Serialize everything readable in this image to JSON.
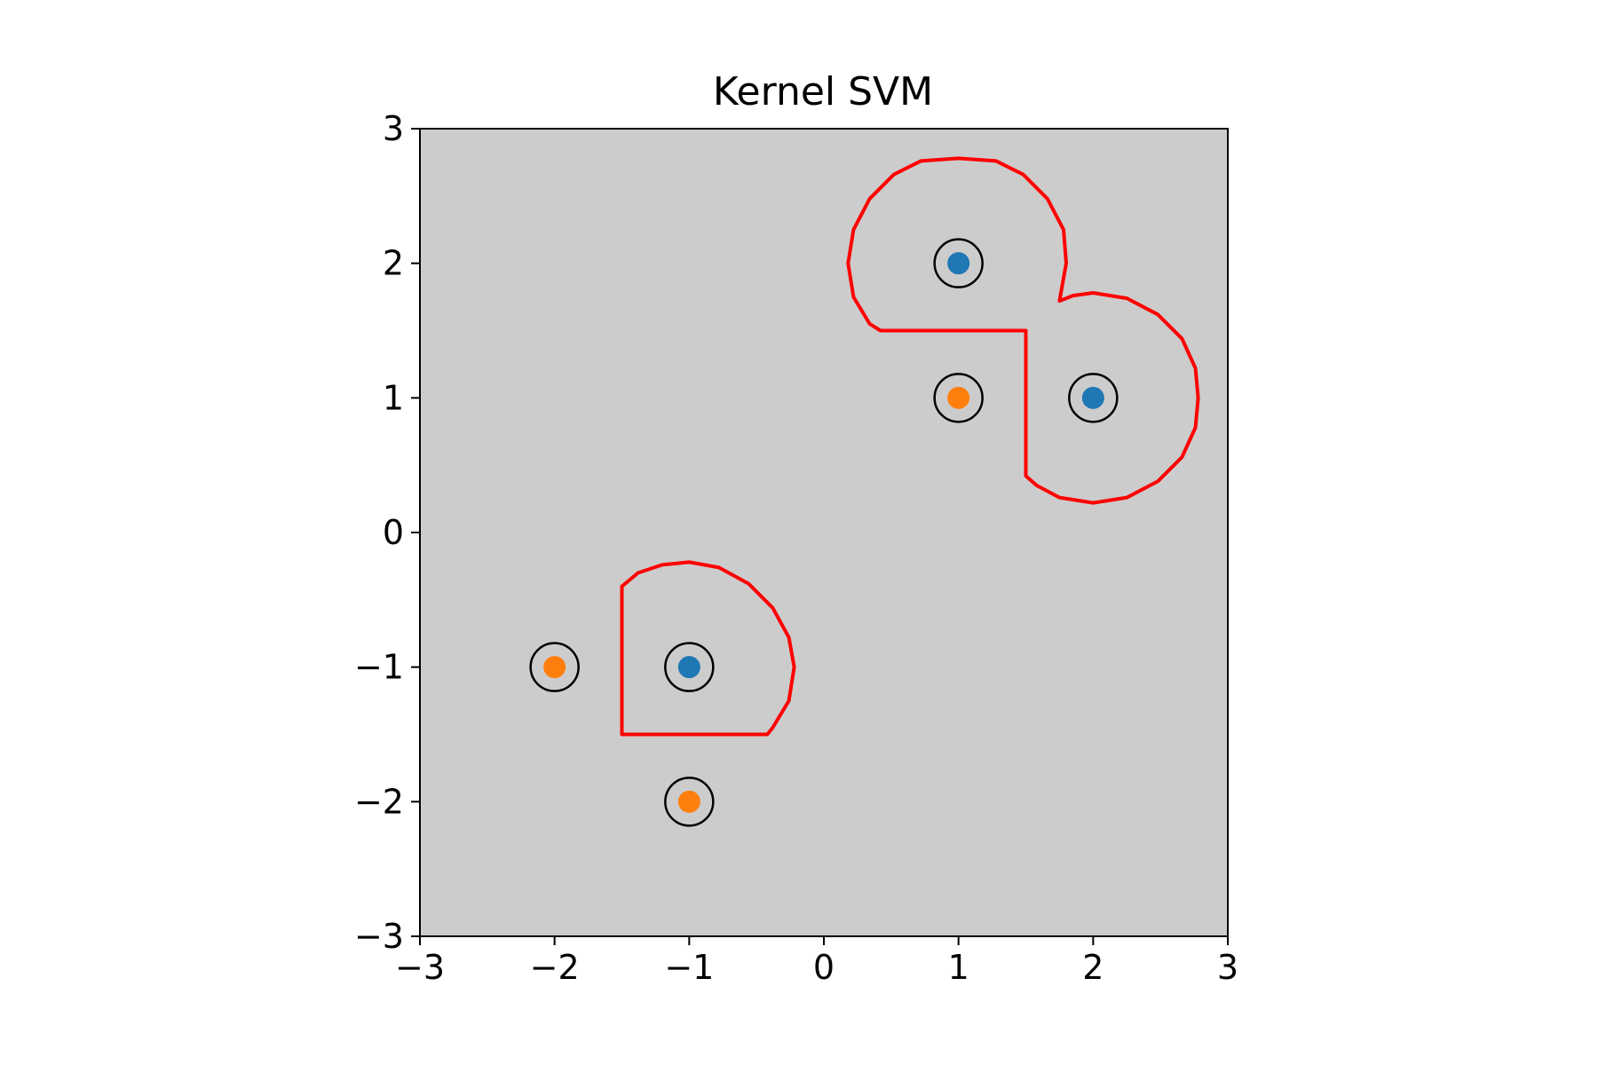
{
  "chart_data": {
    "type": "scatter",
    "title": "Kernel SVM",
    "xlabel": "",
    "ylabel": "",
    "xlim": [
      -3,
      3
    ],
    "ylim": [
      -3,
      3
    ],
    "grid": false,
    "background_color": "#cccccc",
    "x_ticks": [
      {
        "value": -3,
        "label": "−3"
      },
      {
        "value": -2,
        "label": "−2"
      },
      {
        "value": -1,
        "label": "−1"
      },
      {
        "value": 0,
        "label": "0"
      },
      {
        "value": 1,
        "label": "1"
      },
      {
        "value": 2,
        "label": "2"
      },
      {
        "value": 3,
        "label": "3"
      }
    ],
    "y_ticks": [
      {
        "value": -3,
        "label": "−3"
      },
      {
        "value": -2,
        "label": "−2"
      },
      {
        "value": -1,
        "label": "−1"
      },
      {
        "value": 0,
        "label": "0"
      },
      {
        "value": 1,
        "label": "1"
      },
      {
        "value": 2,
        "label": "2"
      },
      {
        "value": 3,
        "label": "3"
      }
    ],
    "series": [
      {
        "color": "#1f77b4",
        "points": [
          {
            "x": 1,
            "y": 2
          },
          {
            "x": 2,
            "y": 1
          },
          {
            "x": -1,
            "y": -1
          }
        ]
      },
      {
        "color": "#ff7f0e",
        "points": [
          {
            "x": 1,
            "y": 1
          },
          {
            "x": -2,
            "y": -1
          },
          {
            "x": -1,
            "y": -2
          }
        ]
      }
    ],
    "support_vectors": {
      "edge_color": "#000000",
      "points": [
        {
          "x": 1,
          "y": 2
        },
        {
          "x": 2,
          "y": 1
        },
        {
          "x": -1,
          "y": -1
        },
        {
          "x": 1,
          "y": 1
        },
        {
          "x": -2,
          "y": -1
        },
        {
          "x": -1,
          "y": -2
        }
      ]
    },
    "decision_boundary": {
      "color": "#ff0000",
      "contours": [
        [
          [
            0.18,
            2.0
          ],
          [
            0.22,
            2.25
          ],
          [
            0.34,
            2.48
          ],
          [
            0.52,
            2.66
          ],
          [
            0.72,
            2.76
          ],
          [
            1.0,
            2.78
          ],
          [
            1.28,
            2.76
          ],
          [
            1.48,
            2.66
          ],
          [
            1.66,
            2.48
          ],
          [
            1.78,
            2.25
          ],
          [
            1.8,
            2.0
          ],
          [
            1.75,
            1.72
          ],
          [
            1.85,
            1.76
          ],
          [
            2.0,
            1.78
          ],
          [
            2.25,
            1.74
          ],
          [
            2.48,
            1.62
          ],
          [
            2.66,
            1.44
          ],
          [
            2.76,
            1.22
          ],
          [
            2.78,
            1.0
          ],
          [
            2.76,
            0.78
          ],
          [
            2.66,
            0.56
          ],
          [
            2.48,
            0.38
          ],
          [
            2.25,
            0.26
          ],
          [
            2.0,
            0.22
          ],
          [
            1.75,
            0.26
          ],
          [
            1.58,
            0.35
          ],
          [
            1.5,
            0.42
          ],
          [
            1.5,
            1.5
          ],
          [
            0.42,
            1.5
          ],
          [
            0.34,
            1.55
          ],
          [
            0.22,
            1.75
          ],
          [
            0.18,
            2.0
          ]
        ],
        [
          [
            -1.5,
            -0.4
          ],
          [
            -1.38,
            -0.3
          ],
          [
            -1.2,
            -0.24
          ],
          [
            -1.0,
            -0.22
          ],
          [
            -0.78,
            -0.26
          ],
          [
            -0.56,
            -0.38
          ],
          [
            -0.38,
            -0.56
          ],
          [
            -0.26,
            -0.78
          ],
          [
            -0.22,
            -1.0
          ],
          [
            -0.26,
            -1.25
          ],
          [
            -0.38,
            -1.45
          ],
          [
            -0.42,
            -1.5
          ],
          [
            -1.5,
            -1.5
          ],
          [
            -1.5,
            -0.4
          ]
        ]
      ]
    }
  }
}
